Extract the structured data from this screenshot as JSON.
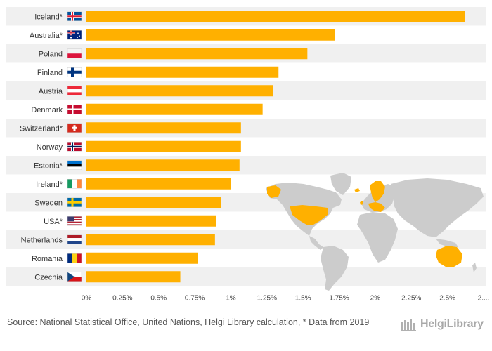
{
  "colors": {
    "bar": "#ffb000",
    "band": "#f0f0f0",
    "map_land": "#cccccc",
    "map_highlight": "#ffb000"
  },
  "chart_data": {
    "type": "bar",
    "orientation": "horizontal",
    "categories": [
      "Iceland*",
      "Australia*",
      "Poland",
      "Finland",
      "Austria",
      "Denmark",
      "Switzerland*",
      "Norway",
      "Estonia*",
      "Ireland*",
      "Sweden",
      "USA*",
      "Netherlands",
      "Romania",
      "Czechia"
    ],
    "values": [
      2.62,
      1.72,
      1.53,
      1.33,
      1.29,
      1.22,
      1.07,
      1.07,
      1.06,
      1.0,
      0.93,
      0.9,
      0.89,
      0.77,
      0.65
    ],
    "flag_icons": [
      "iceland-flag",
      "australia-flag",
      "poland-flag",
      "finland-flag",
      "austria-flag",
      "denmark-flag",
      "switzerland-flag",
      "norway-flag",
      "estonia-flag",
      "ireland-flag",
      "sweden-flag",
      "usa-flag",
      "netherlands-flag",
      "romania-flag",
      "czechia-flag"
    ],
    "xlim": [
      0,
      2.75
    ],
    "xticks": [
      0,
      0.25,
      0.5,
      0.75,
      1,
      1.25,
      1.5,
      1.75,
      2,
      2.25,
      2.5,
      2.75
    ],
    "xtick_labels": [
      "0%",
      "0.25%",
      "0.5%",
      "0.75%",
      "1%",
      "1.25%",
      "1.5%",
      "1.75%",
      "2%",
      "2.25%",
      "2.5%",
      "2...."
    ],
    "title": "",
    "xlabel": "",
    "ylabel": "",
    "grid": "alternating horizontal bands",
    "legend": "none"
  },
  "footer": {
    "source": "Source: National Statistical Office, United Nations, Helgi Library calculation, * Data from 2019",
    "brand": "HelgiLibrary",
    "brand_icon": "library-logo-icon"
  },
  "map": {
    "icon": "world-map-icon",
    "highlighted": [
      "Iceland",
      "Australia",
      "Poland",
      "Finland",
      "Austria",
      "Denmark",
      "Switzerland",
      "Norway",
      "Estonia",
      "Ireland",
      "Sweden",
      "USA",
      "Netherlands",
      "Romania",
      "Czechia"
    ]
  }
}
